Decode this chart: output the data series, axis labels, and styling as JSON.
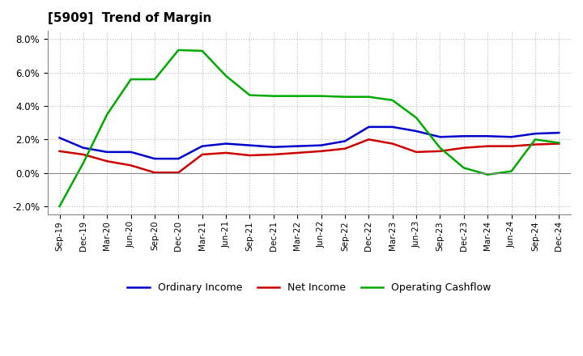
{
  "title": "[5909]  Trend of Margin",
  "x_labels": [
    "Sep-19",
    "Dec-19",
    "Mar-20",
    "Jun-20",
    "Sep-20",
    "Dec-20",
    "Mar-21",
    "Jun-21",
    "Sep-21",
    "Dec-21",
    "Mar-22",
    "Jun-22",
    "Sep-22",
    "Dec-22",
    "Mar-23",
    "Jun-23",
    "Sep-23",
    "Dec-23",
    "Mar-24",
    "Jun-24",
    "Sep-24",
    "Dec-24"
  ],
  "ordinary_income": [
    2.1,
    1.5,
    1.25,
    1.25,
    0.85,
    0.85,
    1.6,
    1.75,
    1.65,
    1.55,
    1.6,
    1.65,
    1.9,
    2.75,
    2.75,
    2.5,
    2.15,
    2.2,
    2.2,
    2.15,
    2.35,
    2.4
  ],
  "net_income": [
    1.3,
    1.1,
    0.7,
    0.45,
    0.02,
    0.02,
    1.1,
    1.2,
    1.05,
    1.1,
    1.2,
    1.3,
    1.45,
    2.0,
    1.75,
    1.25,
    1.3,
    1.5,
    1.6,
    1.6,
    1.7,
    1.75
  ],
  "operating_cashflow": [
    -2.0,
    0.6,
    3.5,
    5.6,
    5.6,
    7.35,
    7.3,
    5.8,
    4.65,
    4.6,
    4.6,
    4.6,
    4.55,
    4.55,
    4.35,
    3.3,
    1.5,
    0.3,
    -0.1,
    0.1,
    2.0,
    1.8
  ],
  "ylim": [
    -2.5,
    8.5
  ],
  "yticks": [
    -2.0,
    0.0,
    2.0,
    4.0,
    6.0,
    8.0
  ],
  "colors": {
    "ordinary_income": "#0000cc",
    "net_income": "#cc0000",
    "operating_cashflow": "#00aa00"
  },
  "legend_labels": [
    "Ordinary Income",
    "Net Income",
    "Operating Cashflow"
  ],
  "background_color": "#ffffff",
  "grid_color": "#aaaaaa"
}
